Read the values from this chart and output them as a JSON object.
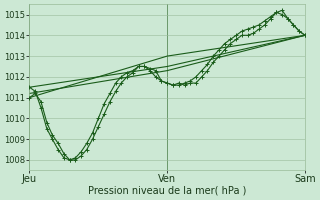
{
  "background_color": "#cce8d4",
  "plot_bg_color": "#cce8d4",
  "grid_color": "#99bb99",
  "line_color": "#1a5c1a",
  "ylabel": "Pression niveau de la mer( hPa )",
  "ylim": [
    1007.5,
    1015.5
  ],
  "yticks": [
    1008,
    1009,
    1010,
    1011,
    1012,
    1013,
    1014,
    1015
  ],
  "day_labels": [
    "Jeu",
    "Ven",
    "Sam"
  ],
  "day_positions": [
    0,
    0.5,
    1.0
  ],
  "series": [
    {
      "x": [
        0.0,
        0.021,
        0.042,
        0.063,
        0.083,
        0.104,
        0.125,
        0.146,
        0.167,
        0.188,
        0.208,
        0.229,
        0.25,
        0.271,
        0.292,
        0.313,
        0.333,
        0.354,
        0.375,
        0.396,
        0.417,
        0.438,
        0.458,
        0.479,
        0.5,
        0.521,
        0.542,
        0.563,
        0.583,
        0.604,
        0.625,
        0.646,
        0.667,
        0.688,
        0.708,
        0.729,
        0.75,
        0.771,
        0.792,
        0.813,
        0.833,
        0.854,
        0.875,
        0.896,
        0.917,
        0.938,
        0.958,
        0.979,
        1.0
      ],
      "y": [
        1011.0,
        1011.2,
        1010.8,
        1009.8,
        1009.2,
        1008.8,
        1008.3,
        1008.0,
        1008.0,
        1008.2,
        1008.5,
        1009.0,
        1009.6,
        1010.2,
        1010.8,
        1011.3,
        1011.7,
        1012.0,
        1012.2,
        1012.5,
        1012.5,
        1012.4,
        1012.3,
        1011.8,
        1011.7,
        1011.6,
        1011.7,
        1011.6,
        1011.7,
        1011.7,
        1012.0,
        1012.3,
        1012.7,
        1013.0,
        1013.3,
        1013.6,
        1013.8,
        1014.0,
        1014.0,
        1014.1,
        1014.3,
        1014.5,
        1014.8,
        1015.1,
        1015.2,
        1014.8,
        1014.5,
        1014.2,
        1014.0
      ]
    },
    {
      "x": [
        0.0,
        0.021,
        0.042,
        0.063,
        0.083,
        0.104,
        0.125,
        0.146,
        0.167,
        0.188,
        0.208,
        0.229,
        0.25,
        0.271,
        0.292,
        0.313,
        0.333,
        0.354,
        0.375,
        0.396,
        0.417,
        0.438,
        0.458,
        0.479,
        0.5,
        0.521,
        0.542,
        0.563,
        0.583,
        0.604,
        0.625,
        0.646,
        0.667,
        0.688,
        0.708,
        0.729,
        0.75,
        0.771,
        0.792,
        0.813,
        0.833,
        0.854,
        0.875,
        0.896,
        0.917,
        0.938,
        0.958,
        0.979,
        1.0
      ],
      "y": [
        1011.5,
        1011.3,
        1010.5,
        1009.5,
        1009.0,
        1008.5,
        1008.1,
        1008.0,
        1008.1,
        1008.4,
        1008.8,
        1009.3,
        1010.0,
        1010.7,
        1011.2,
        1011.7,
        1012.0,
        1012.2,
        1012.3,
        1012.5,
        1012.5,
        1012.3,
        1012.0,
        1011.8,
        1011.7,
        1011.6,
        1011.6,
        1011.7,
        1011.8,
        1012.0,
        1012.3,
        1012.6,
        1013.0,
        1013.3,
        1013.6,
        1013.8,
        1014.0,
        1014.2,
        1014.3,
        1014.4,
        1014.5,
        1014.7,
        1014.9,
        1015.1,
        1015.0,
        1014.8,
        1014.5,
        1014.2,
        1014.0
      ]
    },
    {
      "x": [
        0.0,
        0.5,
        1.0
      ],
      "y": [
        1011.5,
        1012.5,
        1014.0
      ]
    },
    {
      "x": [
        0.0,
        0.5,
        1.0
      ],
      "y": [
        1011.2,
        1012.3,
        1014.0
      ]
    },
    {
      "x": [
        0.0,
        0.5,
        1.0
      ],
      "y": [
        1011.0,
        1013.0,
        1014.0
      ]
    }
  ]
}
